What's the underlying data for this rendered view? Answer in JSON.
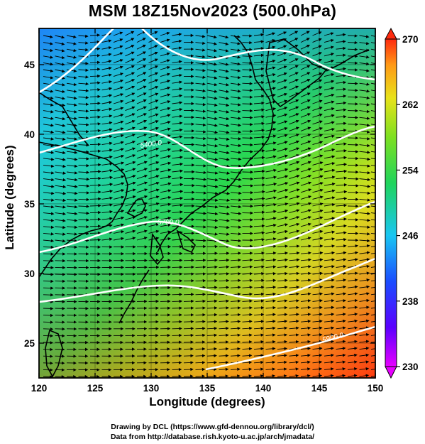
{
  "title": "MSM 18Z15Nov2023 (500.0hPa)",
  "xlabel": "Longitude (degrees)",
  "ylabel": "Latitude  (degrees)",
  "credits": {
    "line1": "Drawing by DCL (https://www.gfd-dennou.org/library/dcl/)",
    "line2": "Data from http://database.rish.kyoto-u.ac.jp/arch/jmadata/"
  },
  "map": {
    "lon_range": [
      120,
      150
    ],
    "lat_range": [
      22.5,
      47.6
    ],
    "lon_ticks": [
      "120",
      "125",
      "130",
      "135",
      "140",
      "145",
      "150"
    ],
    "lat_ticks": [
      "25",
      "30",
      "35",
      "40",
      "45"
    ],
    "contour_labels": [
      "5400.0",
      "5700.0",
      "5900.0"
    ],
    "colorbar": {
      "ticks": [
        "270",
        "262",
        "254",
        "246",
        "238",
        "230"
      ],
      "min": 230,
      "max": 270
    },
    "colors": {
      "warm": "#ff3a10",
      "mid": "#2bdf4a",
      "cool": "#1a90ff",
      "cold": "#4a2bff",
      "contour": "#ffffff",
      "vectors": "#000000"
    }
  }
}
